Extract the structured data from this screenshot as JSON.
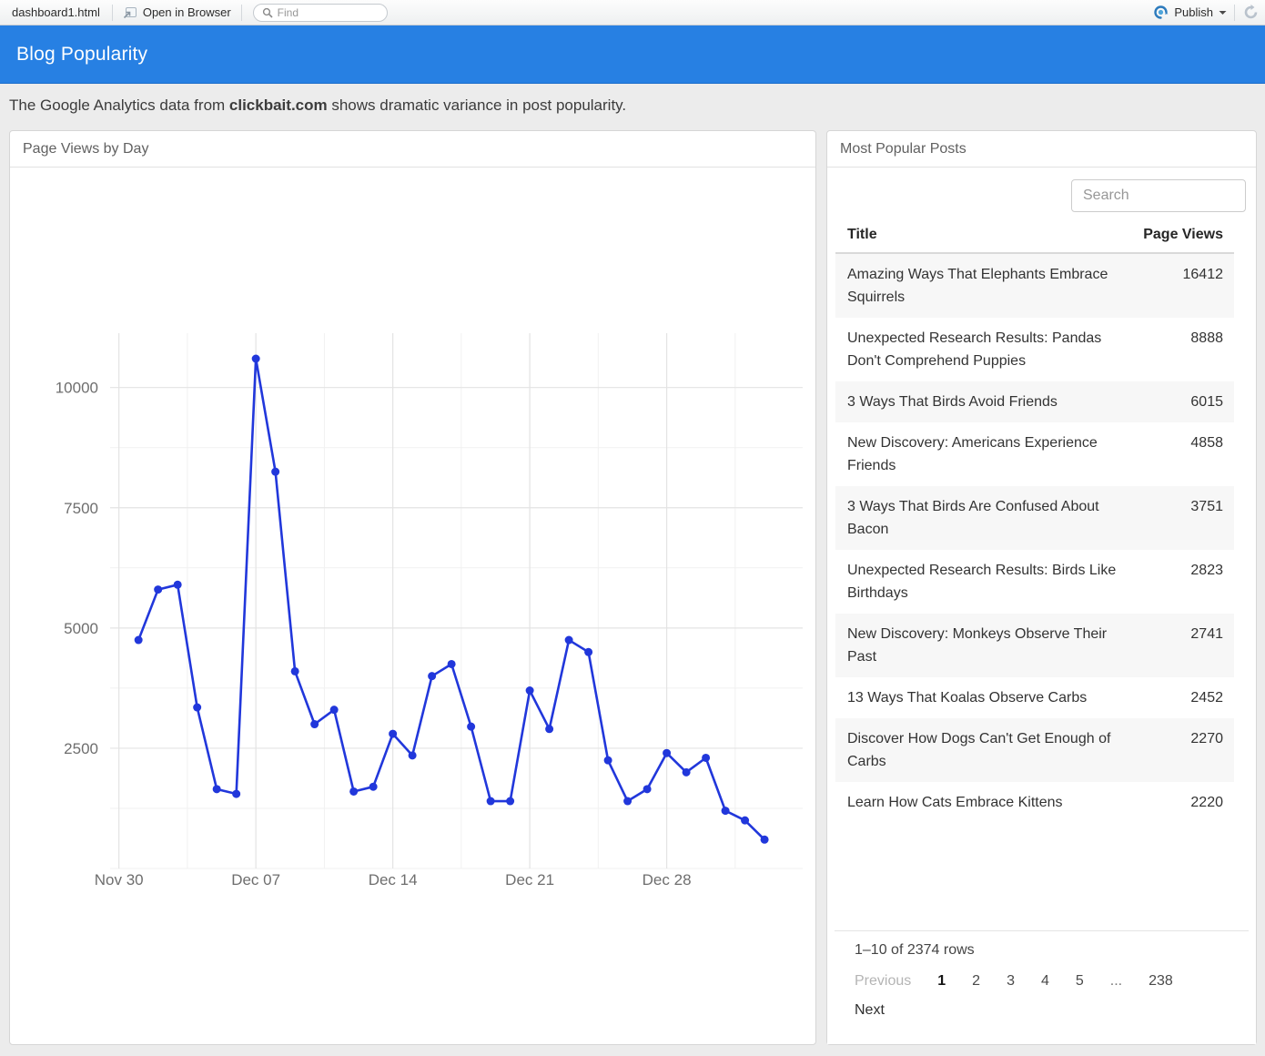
{
  "toolbar": {
    "tab_label": "dashboard1.html",
    "open_in_browser_label": "Open in Browser",
    "find_placeholder": "Find",
    "publish_label": "Publish"
  },
  "icons": {
    "open_in_browser": "window-with-arrow-icon",
    "find": "magnifier-icon",
    "publish": "connect-swirl-icon",
    "publish_caret": "caret-down-icon",
    "refresh": "circular-arrow-icon"
  },
  "header": {
    "title": "Blog Popularity"
  },
  "subtitle": {
    "prefix": "The Google Analytics data from ",
    "bold": "clickbait.com",
    "suffix": " shows dramatic variance in post popularity."
  },
  "chart_panel": {
    "title": "Page Views by Day"
  },
  "chart_data": {
    "type": "line",
    "title": "Page Views by Day",
    "xlabel": "",
    "ylabel": "",
    "x": [
      "Dec 01",
      "Dec 02",
      "Dec 03",
      "Dec 04",
      "Dec 05",
      "Dec 06",
      "Dec 07",
      "Dec 08",
      "Dec 09",
      "Dec 10",
      "Dec 11",
      "Dec 12",
      "Dec 13",
      "Dec 14",
      "Dec 15",
      "Dec 16",
      "Dec 17",
      "Dec 18",
      "Dec 19",
      "Dec 20",
      "Dec 21",
      "Dec 22",
      "Dec 23",
      "Dec 24",
      "Dec 25",
      "Dec 26",
      "Dec 27",
      "Dec 28",
      "Dec 29",
      "Dec 30",
      "Dec 31",
      "Jan 01",
      "Jan 02"
    ],
    "values": [
      4750,
      5800,
      5900,
      3350,
      1650,
      1550,
      10600,
      8250,
      4100,
      3000,
      3300,
      1600,
      1700,
      2800,
      2350,
      4000,
      4250,
      2950,
      1400,
      1400,
      3700,
      2900,
      4750,
      4500,
      2250,
      1400,
      1650,
      2400,
      2000,
      2300,
      1200,
      1000,
      600
    ],
    "x_tick_labels": [
      "Nov 30",
      "Dec 07",
      "Dec 14",
      "Dec 21",
      "Dec 28"
    ],
    "x_tick_index": [
      -1,
      6,
      13,
      20,
      27
    ],
    "x_minor_index": [
      2.5,
      9.5,
      16.5,
      23.5,
      30.5
    ],
    "x_domain": [
      -1.45,
      33.95
    ],
    "y_ticks": [
      2500,
      5000,
      7500,
      10000
    ],
    "y_minor": [
      0,
      1250,
      3750,
      6250,
      8750
    ],
    "ylim": [
      0,
      11130
    ],
    "grid": true,
    "legend": "none",
    "line_color": "#2137db",
    "grid_major_color": "#e3e3e3",
    "grid_minor_color": "#f1f1f1",
    "tick_label_color": "#6e6e6e"
  },
  "table_panel": {
    "title": "Most Popular Posts",
    "search_placeholder": "Search",
    "columns": {
      "title": "Title",
      "views": "Page Views"
    },
    "rows": [
      {
        "title": "Amazing Ways That Elephants Embrace Squirrels",
        "views": "16412"
      },
      {
        "title": "Unexpected Research Results: Pandas Don't Comprehend Puppies",
        "views": "8888"
      },
      {
        "title": "3 Ways That Birds Avoid Friends",
        "views": "6015"
      },
      {
        "title": "New Discovery: Americans Experience Friends",
        "views": "4858"
      },
      {
        "title": "3 Ways That Birds Are Confused About Bacon",
        "views": "3751"
      },
      {
        "title": "Unexpected Research Results: Birds Like Birthdays",
        "views": "2823"
      },
      {
        "title": "New Discovery: Monkeys Observe Their Past",
        "views": "2741"
      },
      {
        "title": "13 Ways That Koalas Observe Carbs",
        "views": "2452"
      },
      {
        "title": "Discover How Dogs Can't Get Enough of Carbs",
        "views": "2270"
      },
      {
        "title": "Learn How Cats Embrace Kittens",
        "views": "2220"
      }
    ],
    "pagination": {
      "info": "1–10 of 2374 rows",
      "previous": "Previous",
      "pages": [
        "1",
        "2",
        "3",
        "4",
        "5",
        "...",
        "238"
      ],
      "current_page": "1",
      "next": "Next"
    }
  }
}
